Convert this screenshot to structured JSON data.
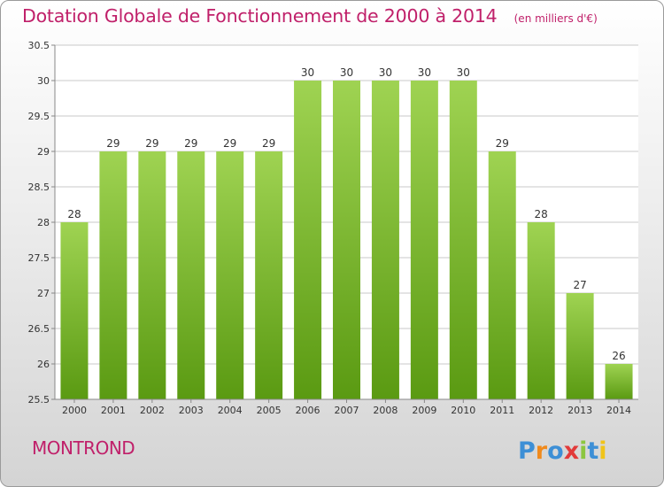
{
  "title": "Dotation Globale de Fonctionnement de 2000 à 2014",
  "unit_note": "(en milliers d'€)",
  "commune": "MONTROND",
  "logo": {
    "text": "Proxiti"
  },
  "colors": {
    "title": "#c0206a",
    "bar_top": "#9fd352",
    "bar_bottom": "#5a9a12",
    "grid": "#c8c8c8",
    "axis_text": "#333333"
  },
  "chart_data": {
    "type": "bar",
    "categories": [
      "2000",
      "2001",
      "2002",
      "2003",
      "2004",
      "2005",
      "2006",
      "2007",
      "2008",
      "2009",
      "2010",
      "2011",
      "2012",
      "2013",
      "2014"
    ],
    "values": [
      28,
      29,
      29,
      29,
      29,
      29,
      30,
      30,
      30,
      30,
      30,
      29,
      28,
      27,
      26
    ],
    "data_labels": [
      "28",
      "29",
      "29",
      "29",
      "29",
      "29",
      "30",
      "30",
      "30",
      "30",
      "30",
      "29",
      "28",
      "27",
      "26"
    ],
    "ylim": [
      25.5,
      30.5
    ],
    "yticks": [
      25.5,
      26,
      26.5,
      27,
      27.5,
      28,
      28.5,
      29,
      29.5,
      30,
      30.5
    ],
    "ytick_labels": [
      "25.5",
      "26",
      "26.5",
      "27",
      "27.5",
      "28",
      "28.5",
      "29",
      "29.5",
      "30",
      "30.5"
    ],
    "grid": true,
    "xlabel": "",
    "ylabel": ""
  }
}
